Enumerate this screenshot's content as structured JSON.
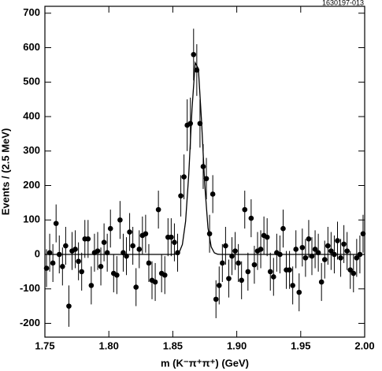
{
  "chart_data": {
    "type": "scatter",
    "id_label": "1630197-013",
    "x_label": "m (K⁻π⁺π⁺) (GeV)",
    "y_label": "Events / (2.5 MeV)",
    "color": "#000000",
    "xlim": [
      1.75,
      2.0
    ],
    "ylim": [
      -240,
      720
    ],
    "xticks": [
      1.75,
      {
        "value": 1.8,
        "label": "1.80"
      },
      1.85,
      {
        "value": 1.9,
        "label": "1.90"
      },
      1.95,
      {
        "value": 2.0,
        "label": "2.00"
      }
    ],
    "yticks": [
      -200,
      -100,
      0,
      100,
      200,
      300,
      400,
      500,
      600,
      700
    ],
    "x": [
      1.75125,
      1.75375,
      1.75625,
      1.75875,
      1.76125,
      1.76375,
      1.76625,
      1.76875,
      1.77125,
      1.77375,
      1.77625,
      1.77875,
      1.78125,
      1.78375,
      1.78625,
      1.78875,
      1.79125,
      1.79375,
      1.79625,
      1.79875,
      1.80125,
      1.80375,
      1.80625,
      1.80875,
      1.81125,
      1.81375,
      1.81625,
      1.81875,
      1.82125,
      1.82375,
      1.82625,
      1.82875,
      1.83125,
      1.83375,
      1.83625,
      1.83875,
      1.84125,
      1.84375,
      1.84625,
      1.84875,
      1.85125,
      1.85375,
      1.85625,
      1.85875,
      1.86125,
      1.86375,
      1.86625,
      1.86875,
      1.87125,
      1.87375,
      1.87625,
      1.87875,
      1.88125,
      1.88375,
      1.88625,
      1.88875,
      1.89125,
      1.89375,
      1.89625,
      1.89875,
      1.90125,
      1.90375,
      1.90625,
      1.90875,
      1.91125,
      1.91375,
      1.91625,
      1.91875,
      1.92125,
      1.92375,
      1.92625,
      1.92875,
      1.93125,
      1.93375,
      1.93625,
      1.93875,
      1.94125,
      1.94375,
      1.94625,
      1.94875,
      1.95125,
      1.95375,
      1.95625,
      1.95875,
      1.96125,
      1.96375,
      1.96625,
      1.96875,
      1.97125,
      1.97375,
      1.97625,
      1.97875,
      1.98125,
      1.98375,
      1.98625,
      1.98875,
      1.99125,
      1.99375,
      1.99625,
      1.99875
    ],
    "values": [
      -40,
      5,
      -25,
      90,
      0,
      -35,
      25,
      -150,
      10,
      15,
      -20,
      -50,
      45,
      45,
      -90,
      5,
      10,
      -35,
      35,
      5,
      75,
      -55,
      -60,
      100,
      5,
      -5,
      65,
      25,
      -95,
      15,
      55,
      60,
      -25,
      -75,
      -80,
      130,
      -55,
      -60,
      50,
      50,
      35,
      5,
      170,
      225,
      375,
      380,
      580,
      535,
      380,
      255,
      220,
      60,
      175,
      -130,
      -90,
      -25,
      25,
      -70,
      -5,
      10,
      -25,
      -75,
      130,
      -50,
      105,
      -30,
      10,
      15,
      55,
      50,
      -50,
      -65,
      5,
      0,
      75,
      -45,
      -45,
      -90,
      15,
      -110,
      20,
      -10,
      45,
      -5,
      15,
      5,
      -80,
      -15,
      25,
      10,
      0,
      40,
      -10,
      30,
      10,
      -45,
      -55,
      -10,
      0,
      60
    ],
    "errors": [
      55,
      55,
      55,
      55,
      55,
      55,
      55,
      60,
      55,
      55,
      55,
      55,
      55,
      55,
      55,
      55,
      55,
      55,
      55,
      55,
      55,
      55,
      55,
      55,
      55,
      55,
      55,
      55,
      55,
      55,
      55,
      55,
      55,
      55,
      55,
      55,
      55,
      55,
      55,
      55,
      55,
      55,
      60,
      65,
      75,
      75,
      75,
      75,
      70,
      65,
      60,
      55,
      55,
      55,
      55,
      55,
      55,
      55,
      55,
      55,
      55,
      55,
      55,
      55,
      55,
      55,
      55,
      55,
      55,
      55,
      55,
      55,
      55,
      55,
      55,
      55,
      55,
      55,
      55,
      55,
      55,
      55,
      55,
      55,
      55,
      55,
      55,
      55,
      55,
      55,
      55,
      55,
      55,
      55,
      55,
      55,
      55,
      55,
      55,
      55
    ],
    "fit": {
      "x": [
        1.75,
        1.845,
        1.8475,
        1.85,
        1.8525,
        1.855,
        1.8575,
        1.86,
        1.8625,
        1.865,
        1.8675,
        1.87,
        1.8725,
        1.875,
        1.8775,
        1.88,
        1.8825,
        1.885,
        1.8875,
        1.89,
        2.0
      ],
      "y": [
        0,
        0,
        0,
        0.1,
        1,
        6,
        29,
        96,
        234,
        421,
        556,
        539,
        384,
        201,
        77,
        22,
        4.5,
        0.7,
        0,
        0,
        0
      ]
    }
  }
}
